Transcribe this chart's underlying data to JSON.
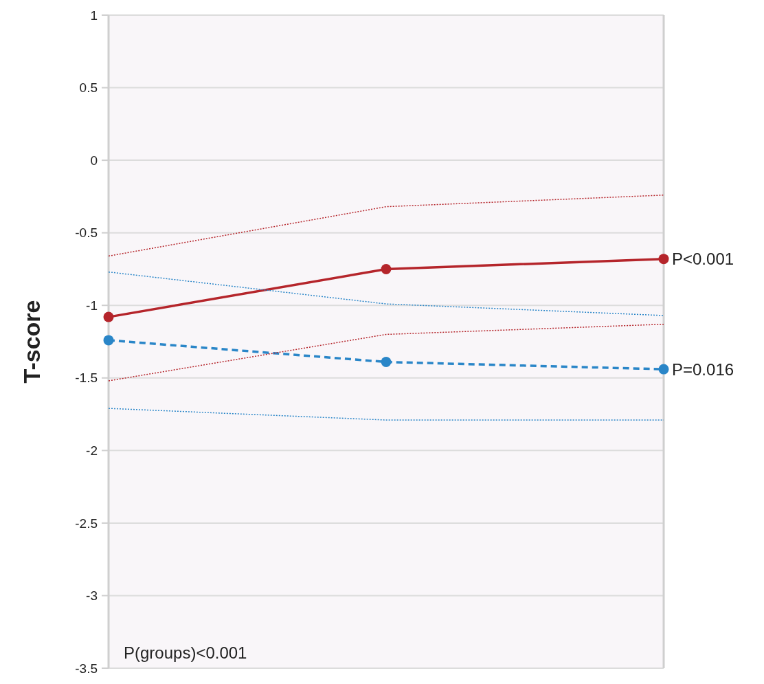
{
  "chart_data": {
    "type": "line",
    "ylabel": "T-score",
    "categories": [
      null,
      null,
      null
    ],
    "series": [
      {
        "color": "#b5252b",
        "values": [
          -1.08,
          -0.75,
          -0.68
        ],
        "line_style": "solid",
        "marker": "circle"
      },
      {
        "color": "#2a86c8",
        "values": [
          -1.24,
          -1.39,
          -1.44
        ],
        "line_style": "dashed",
        "marker": "circle"
      },
      {
        "color": "#b5252b",
        "values": [
          -0.66,
          -0.32,
          -0.24
        ],
        "line_style": "dotted"
      },
      {
        "color": "#b5252b",
        "values": [
          -1.52,
          -1.2,
          -1.13
        ],
        "line_style": "dotted"
      },
      {
        "color": "#2a86c8",
        "values": [
          -0.77,
          -0.99,
          -1.07
        ],
        "line_style": "dotted"
      },
      {
        "color": "#2a86c8",
        "values": [
          -1.71,
          -1.79,
          -1.79
        ],
        "line_style": "dotted"
      }
    ],
    "ylim": [
      -3.5,
      1
    ],
    "yticks": [
      -3.5,
      -3,
      -2.5,
      -2,
      -1.5,
      -1,
      -0.5,
      0,
      0.5,
      1
    ],
    "grid": "y",
    "annotations": [
      "P<0.001",
      "P=0.016",
      "P(groups)<0.001"
    ]
  }
}
